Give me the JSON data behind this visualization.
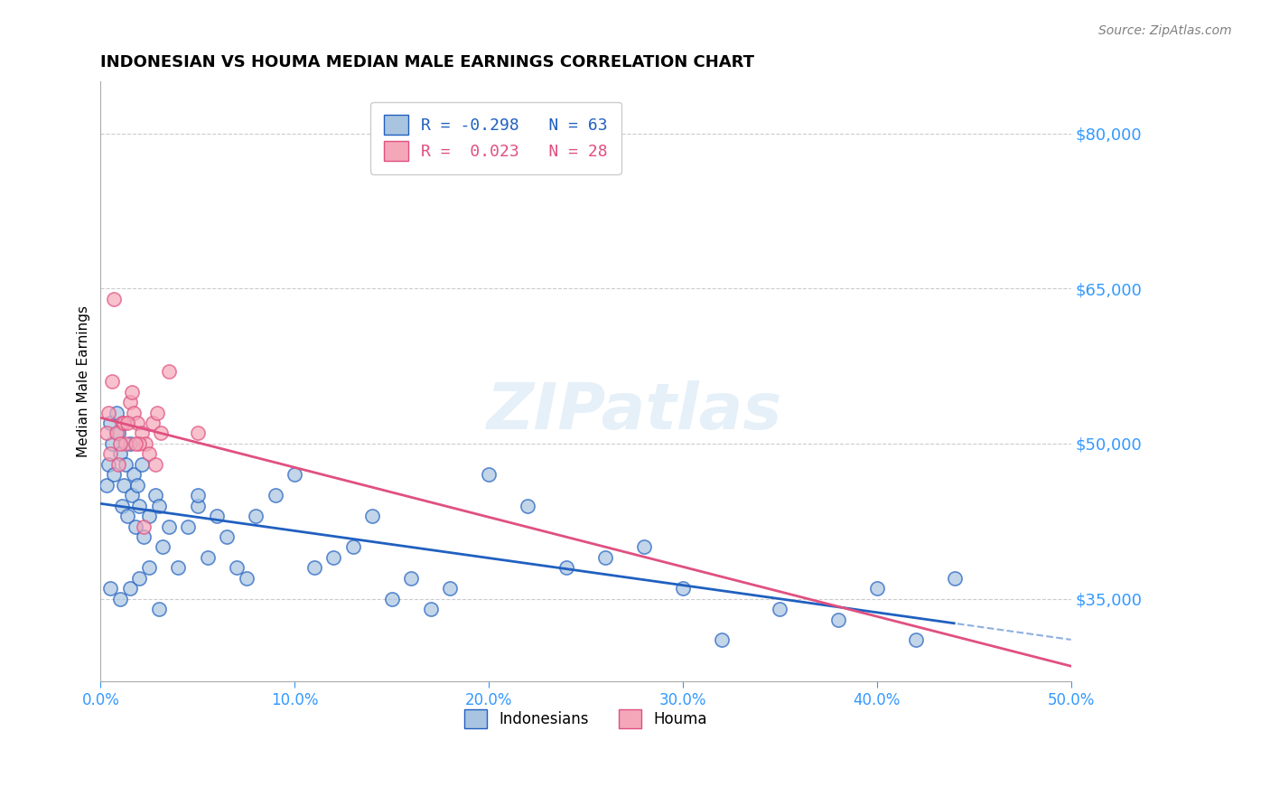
{
  "title": "INDONESIAN VS HOUMA MEDIAN MALE EARNINGS CORRELATION CHART",
  "source": "Source: ZipAtlas.com",
  "ylabel": "Median Male Earnings",
  "xlim": [
    0.0,
    50.0
  ],
  "ylim": [
    27000,
    85000
  ],
  "yticks": [
    35000,
    50000,
    65000,
    80000
  ],
  "ytick_labels": [
    "$35,000",
    "$50,000",
    "$65,000",
    "$80,000"
  ],
  "xticks": [
    0.0,
    10.0,
    20.0,
    30.0,
    40.0,
    50.0
  ],
  "xtick_labels": [
    "0.0%",
    "10.0%",
    "20.0%",
    "30.0%",
    "40.0%",
    "50.0%"
  ],
  "indonesian_R": -0.298,
  "indonesian_N": 63,
  "houma_R": 0.023,
  "houma_N": 28,
  "indonesian_color": "#a8c4e0",
  "houma_color": "#f4a7b9",
  "indonesian_line_color": "#2060c0",
  "houma_line_color": "#e05080",
  "indonesian_x": [
    0.3,
    0.4,
    0.5,
    0.6,
    0.7,
    0.8,
    0.9,
    1.0,
    1.1,
    1.2,
    1.3,
    1.4,
    1.5,
    1.6,
    1.7,
    1.8,
    1.9,
    2.0,
    2.1,
    2.2,
    2.5,
    2.8,
    3.0,
    3.2,
    3.5,
    4.0,
    4.5,
    5.0,
    5.5,
    6.0,
    6.5,
    7.0,
    7.5,
    8.0,
    9.0,
    10.0,
    11.0,
    12.0,
    13.0,
    14.0,
    15.0,
    16.0,
    17.0,
    18.0,
    20.0,
    22.0,
    24.0,
    26.0,
    28.0,
    30.0,
    32.0,
    35.0,
    38.0,
    40.0,
    42.0,
    44.0,
    0.5,
    1.0,
    1.5,
    2.0,
    2.5,
    3.0,
    5.0
  ],
  "indonesian_y": [
    46000,
    48000,
    52000,
    50000,
    47000,
    53000,
    51000,
    49000,
    44000,
    46000,
    48000,
    43000,
    50000,
    45000,
    47000,
    42000,
    46000,
    44000,
    48000,
    41000,
    43000,
    45000,
    44000,
    40000,
    42000,
    38000,
    42000,
    44000,
    39000,
    43000,
    41000,
    38000,
    37000,
    43000,
    45000,
    47000,
    38000,
    39000,
    40000,
    43000,
    35000,
    37000,
    34000,
    36000,
    47000,
    44000,
    38000,
    39000,
    40000,
    36000,
    31000,
    34000,
    33000,
    36000,
    31000,
    37000,
    36000,
    35000,
    36000,
    37000,
    38000,
    34000,
    45000
  ],
  "houma_x": [
    0.3,
    0.5,
    0.7,
    0.9,
    1.1,
    1.3,
    1.5,
    1.7,
    1.9,
    2.1,
    2.3,
    2.5,
    2.7,
    2.9,
    3.1,
    0.4,
    0.6,
    0.8,
    1.0,
    1.2,
    1.6,
    2.0,
    3.5,
    5.0,
    1.4,
    1.8,
    2.2,
    2.8
  ],
  "houma_y": [
    51000,
    49000,
    64000,
    48000,
    52000,
    50000,
    54000,
    53000,
    52000,
    51000,
    50000,
    49000,
    52000,
    53000,
    51000,
    53000,
    56000,
    51000,
    50000,
    52000,
    55000,
    50000,
    57000,
    51000,
    52000,
    50000,
    42000,
    48000
  ],
  "watermark": "ZIPatlas",
  "background_color": "#ffffff",
  "grid_color": "#cccccc"
}
